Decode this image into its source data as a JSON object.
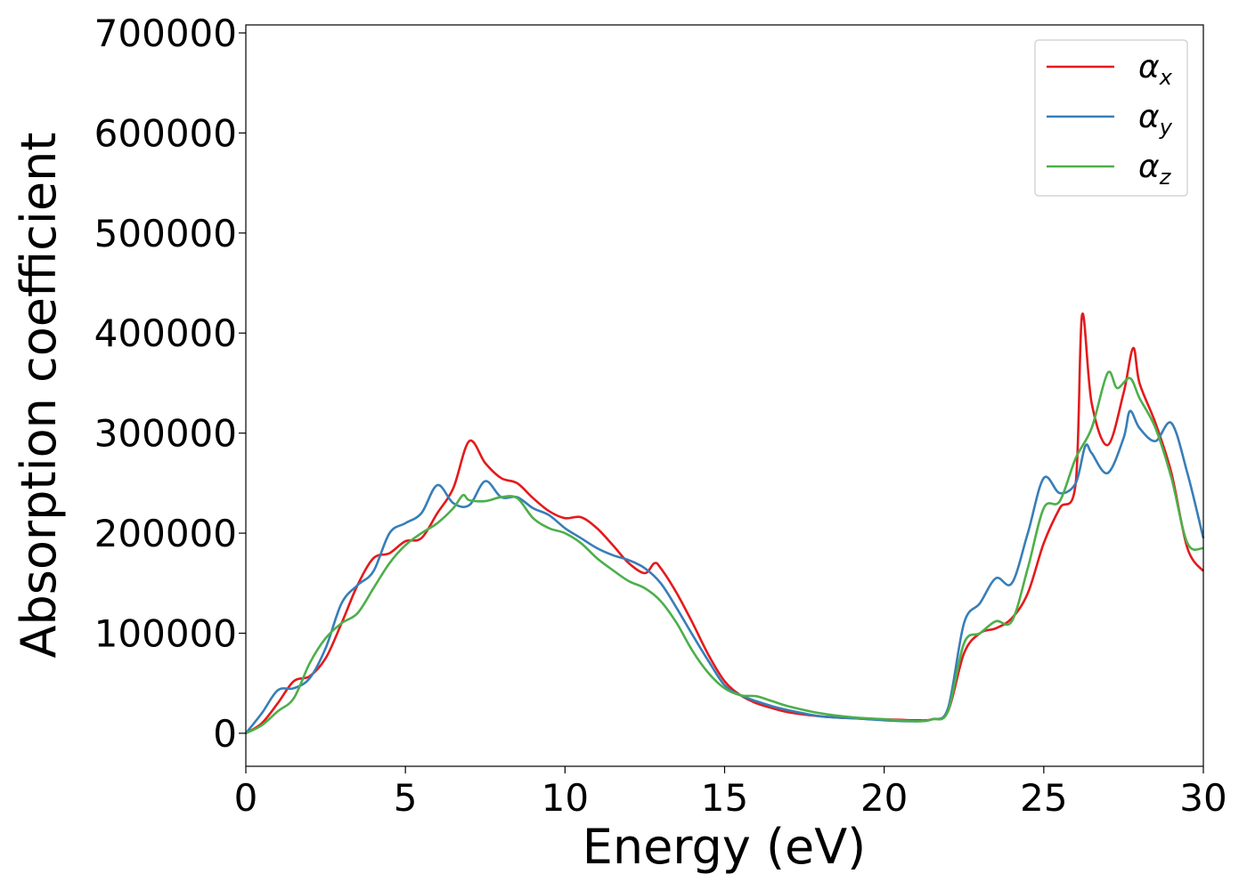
{
  "chart_data": {
    "type": "line",
    "xlabel": "Energy (eV)",
    "ylabel": "Absorption coefficient",
    "xlim": [
      0,
      30
    ],
    "ylim": [
      -33000,
      708000
    ],
    "x_ticks": [
      "0",
      "5",
      "10",
      "15",
      "20",
      "25",
      "30"
    ],
    "y_ticks": [
      "0",
      "100000",
      "200000",
      "300000",
      "400000",
      "500000",
      "600000",
      "700000"
    ],
    "grid": false,
    "legend_position": "top-right",
    "series": [
      {
        "name": "α",
        "subscript": "x",
        "color": "#e41a1c",
        "points": [
          [
            0,
            0
          ],
          [
            0.5,
            10000
          ],
          [
            1,
            30000
          ],
          [
            1.5,
            52000
          ],
          [
            2,
            57000
          ],
          [
            2.5,
            75000
          ],
          [
            3,
            110000
          ],
          [
            3.5,
            148000
          ],
          [
            4,
            175000
          ],
          [
            4.5,
            180000
          ],
          [
            5,
            192000
          ],
          [
            5.5,
            195000
          ],
          [
            6,
            220000
          ],
          [
            6.5,
            245000
          ],
          [
            7,
            292000
          ],
          [
            7.5,
            270000
          ],
          [
            8,
            255000
          ],
          [
            8.5,
            250000
          ],
          [
            9,
            235000
          ],
          [
            9.5,
            222000
          ],
          [
            10,
            215000
          ],
          [
            10.5,
            216000
          ],
          [
            11,
            205000
          ],
          [
            11.5,
            188000
          ],
          [
            12,
            170000
          ],
          [
            12.5,
            160000
          ],
          [
            12.8,
            170000
          ],
          [
            13,
            165000
          ],
          [
            13.5,
            140000
          ],
          [
            14,
            110000
          ],
          [
            14.5,
            78000
          ],
          [
            15,
            52000
          ],
          [
            15.5,
            38000
          ],
          [
            16,
            30000
          ],
          [
            16.5,
            25000
          ],
          [
            17,
            21000
          ],
          [
            18,
            17000
          ],
          [
            19,
            15000
          ],
          [
            20,
            14000
          ],
          [
            21,
            13000
          ],
          [
            21.5,
            14000
          ],
          [
            22,
            22000
          ],
          [
            22.5,
            80000
          ],
          [
            23,
            100000
          ],
          [
            23.5,
            105000
          ],
          [
            24,
            115000
          ],
          [
            24.5,
            140000
          ],
          [
            25,
            190000
          ],
          [
            25.5,
            225000
          ],
          [
            26,
            250000
          ],
          [
            26.2,
            418000
          ],
          [
            26.5,
            330000
          ],
          [
            27,
            288000
          ],
          [
            27.5,
            340000
          ],
          [
            27.8,
            385000
          ],
          [
            28,
            350000
          ],
          [
            28.5,
            310000
          ],
          [
            29,
            260000
          ],
          [
            29.5,
            185000
          ],
          [
            30,
            162000
          ]
        ]
      },
      {
        "name": "α",
        "subscript": "y",
        "color": "#377eb8",
        "points": [
          [
            0,
            0
          ],
          [
            0.5,
            20000
          ],
          [
            1,
            43000
          ],
          [
            1.5,
            45000
          ],
          [
            2,
            55000
          ],
          [
            2.5,
            85000
          ],
          [
            3,
            130000
          ],
          [
            3.5,
            148000
          ],
          [
            4,
            162000
          ],
          [
            4.5,
            200000
          ],
          [
            5,
            210000
          ],
          [
            5.5,
            220000
          ],
          [
            6,
            248000
          ],
          [
            6.5,
            230000
          ],
          [
            7,
            228000
          ],
          [
            7.5,
            252000
          ],
          [
            8,
            236000
          ],
          [
            8.5,
            236000
          ],
          [
            9,
            225000
          ],
          [
            9.5,
            218000
          ],
          [
            10,
            205000
          ],
          [
            10.5,
            195000
          ],
          [
            11,
            185000
          ],
          [
            11.5,
            178000
          ],
          [
            12,
            173000
          ],
          [
            12.5,
            165000
          ],
          [
            13,
            150000
          ],
          [
            13.5,
            125000
          ],
          [
            14,
            98000
          ],
          [
            14.5,
            72000
          ],
          [
            15,
            48000
          ],
          [
            15.5,
            38000
          ],
          [
            16,
            32000
          ],
          [
            16.5,
            27000
          ],
          [
            17,
            23000
          ],
          [
            18,
            17000
          ],
          [
            19,
            15000
          ],
          [
            20,
            13000
          ],
          [
            21,
            12000
          ],
          [
            21.5,
            14000
          ],
          [
            22,
            25000
          ],
          [
            22.5,
            110000
          ],
          [
            23,
            130000
          ],
          [
            23.5,
            155000
          ],
          [
            24,
            150000
          ],
          [
            24.5,
            200000
          ],
          [
            25,
            255000
          ],
          [
            25.5,
            240000
          ],
          [
            26,
            250000
          ],
          [
            26.3,
            287000
          ],
          [
            26.5,
            280000
          ],
          [
            27,
            260000
          ],
          [
            27.5,
            295000
          ],
          [
            27.7,
            322000
          ],
          [
            28,
            305000
          ],
          [
            28.5,
            292000
          ],
          [
            29,
            310000
          ],
          [
            29.5,
            260000
          ],
          [
            30,
            195000
          ]
        ]
      },
      {
        "name": "α",
        "subscript": "z",
        "color": "#4daf4a",
        "points": [
          [
            0,
            0
          ],
          [
            0.5,
            8000
          ],
          [
            1,
            22000
          ],
          [
            1.5,
            35000
          ],
          [
            2,
            70000
          ],
          [
            2.5,
            95000
          ],
          [
            3,
            110000
          ],
          [
            3.5,
            120000
          ],
          [
            4,
            145000
          ],
          [
            4.5,
            170000
          ],
          [
            5,
            188000
          ],
          [
            5.5,
            200000
          ],
          [
            6,
            210000
          ],
          [
            6.5,
            225000
          ],
          [
            6.8,
            238000
          ],
          [
            7,
            233000
          ],
          [
            7.5,
            232000
          ],
          [
            8,
            236000
          ],
          [
            8.5,
            235000
          ],
          [
            9,
            215000
          ],
          [
            9.5,
            205000
          ],
          [
            10,
            200000
          ],
          [
            10.5,
            190000
          ],
          [
            11,
            175000
          ],
          [
            11.5,
            163000
          ],
          [
            12,
            152000
          ],
          [
            12.5,
            145000
          ],
          [
            13,
            132000
          ],
          [
            13.5,
            110000
          ],
          [
            14,
            82000
          ],
          [
            14.5,
            60000
          ],
          [
            15,
            45000
          ],
          [
            15.5,
            38000
          ],
          [
            16,
            37000
          ],
          [
            16.5,
            32000
          ],
          [
            17,
            27000
          ],
          [
            18,
            20000
          ],
          [
            19,
            16000
          ],
          [
            20,
            14000
          ],
          [
            21,
            12000
          ],
          [
            21.5,
            14000
          ],
          [
            22,
            22000
          ],
          [
            22.5,
            90000
          ],
          [
            23,
            100000
          ],
          [
            23.5,
            112000
          ],
          [
            24,
            112000
          ],
          [
            24.5,
            165000
          ],
          [
            25,
            225000
          ],
          [
            25.5,
            232000
          ],
          [
            26,
            275000
          ],
          [
            26.5,
            305000
          ],
          [
            27,
            360000
          ],
          [
            27.3,
            345000
          ],
          [
            27.7,
            355000
          ],
          [
            28,
            335000
          ],
          [
            28.5,
            305000
          ],
          [
            29,
            255000
          ],
          [
            29.5,
            190000
          ],
          [
            30,
            185000
          ]
        ]
      }
    ]
  }
}
